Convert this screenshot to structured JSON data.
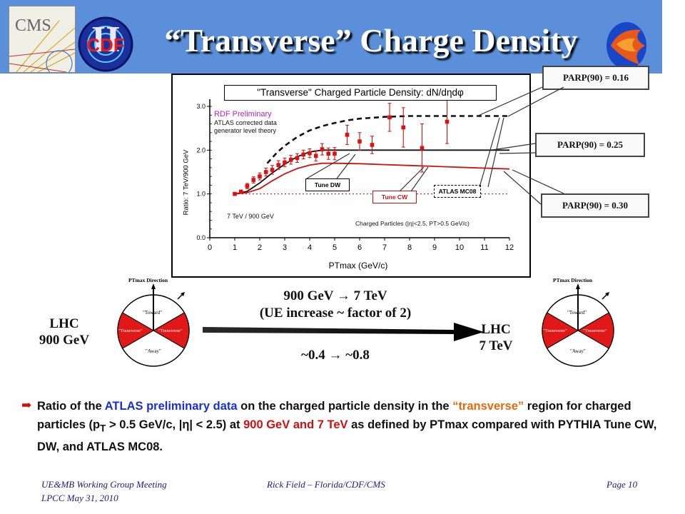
{
  "slide": {
    "title": "“Transverse” Charge Density"
  },
  "logos": {
    "cms": "CMS",
    "cdf": "CDF",
    "cdf_numeral": "II"
  },
  "plot": {
    "title_pre": "\"Transverse\" Charged Particle Density: dN/d",
    "title_greek": "ηdφ",
    "legend_preliminary": "RDF Preliminary",
    "legend_line2": "ATLAS corrected data",
    "legend_line3": "generator level theory",
    "energy_ratio_label": "7 TeV / 900 GeV",
    "charged_particles_label": "Charged Particles (|η|<2.5, PT>0.5 GeV/c)",
    "tune_dw": "Tune DW",
    "tune_cw": "Tune CW",
    "atlas_mc08": "ATLAS MC08",
    "ylabel": "Ratio: 7 TeV/900 GeV",
    "xlabel": "PTmax (GeV/c)"
  },
  "chart_data": {
    "type": "scatter",
    "title": "\"Transverse\" Charged Particle Density: dN/dηdφ",
    "xlabel": "PTmax (GeV/c)",
    "ylabel": "Ratio: 7 TeV/900 GeV",
    "xlim": [
      0,
      12
    ],
    "ylim": [
      0,
      3
    ],
    "x_ticks": [
      0,
      1,
      2,
      3,
      4,
      5,
      6,
      7,
      8,
      9,
      10,
      11,
      12
    ],
    "y_ticks": [
      0.0,
      1.0,
      2.0,
      3.0
    ],
    "data_points": [
      {
        "x": 1.0,
        "y": 1.0,
        "err": 0.03
      },
      {
        "x": 1.25,
        "y": 1.05,
        "err": 0.04
      },
      {
        "x": 1.5,
        "y": 1.18,
        "err": 0.06
      },
      {
        "x": 1.75,
        "y": 1.32,
        "err": 0.07
      },
      {
        "x": 2.0,
        "y": 1.4,
        "err": 0.08
      },
      {
        "x": 2.25,
        "y": 1.5,
        "err": 0.09
      },
      {
        "x": 2.5,
        "y": 1.55,
        "err": 0.1
      },
      {
        "x": 2.75,
        "y": 1.66,
        "err": 0.1
      },
      {
        "x": 3.0,
        "y": 1.72,
        "err": 0.1
      },
      {
        "x": 3.25,
        "y": 1.78,
        "err": 0.1
      },
      {
        "x": 3.5,
        "y": 1.82,
        "err": 0.1
      },
      {
        "x": 3.75,
        "y": 1.9,
        "err": 0.1
      },
      {
        "x": 4.0,
        "y": 1.93,
        "err": 0.1
      },
      {
        "x": 4.25,
        "y": 1.87,
        "err": 0.12
      },
      {
        "x": 4.5,
        "y": 2.02,
        "err": 0.13
      },
      {
        "x": 4.75,
        "y": 1.92,
        "err": 0.13
      },
      {
        "x": 5.0,
        "y": 1.92,
        "err": 0.14
      },
      {
        "x": 5.5,
        "y": 2.35,
        "err": 0.22
      },
      {
        "x": 6.0,
        "y": 2.2,
        "err": 0.2
      },
      {
        "x": 6.5,
        "y": 2.12,
        "err": 0.2
      },
      {
        "x": 7.2,
        "y": 2.75,
        "err": 0.32
      },
      {
        "x": 7.75,
        "y": 2.52,
        "err": 0.45
      },
      {
        "x": 8.5,
        "y": 2.05,
        "err": 0.55
      },
      {
        "x": 9.5,
        "y": 2.65,
        "err": 0.5
      }
    ],
    "series": [
      {
        "name": "Tune DW",
        "color": "#111111",
        "style": "solid",
        "x": [
          1,
          1.5,
          2,
          2.5,
          3,
          3.5,
          4,
          4.5,
          5,
          6,
          7,
          8,
          9,
          10,
          11,
          12
        ],
        "y": [
          1.0,
          1.06,
          1.25,
          1.48,
          1.68,
          1.85,
          1.96,
          2.0,
          2.0,
          2.0,
          2.0,
          2.0,
          2.0,
          2.0,
          2.0,
          2.0
        ]
      },
      {
        "name": "Tune CW",
        "color": "#d01010",
        "style": "solid",
        "x": [
          1,
          1.5,
          2,
          2.5,
          3,
          3.5,
          4,
          4.5,
          5,
          6,
          7,
          8,
          9,
          10,
          11,
          12
        ],
        "y": [
          1.0,
          1.03,
          1.12,
          1.3,
          1.46,
          1.58,
          1.66,
          1.7,
          1.7,
          1.69,
          1.67,
          1.65,
          1.63,
          1.61,
          1.59,
          1.57
        ]
      },
      {
        "name": "ATLAS MC08",
        "color": "#111111",
        "style": "dashed",
        "x": [
          2.3,
          2.7,
          3,
          3.5,
          4,
          4.5,
          5,
          5.5,
          6,
          7,
          8,
          9,
          10,
          11,
          12
        ],
        "y": [
          1.7,
          1.95,
          2.1,
          2.3,
          2.45,
          2.55,
          2.62,
          2.68,
          2.72,
          2.76,
          2.78,
          2.78,
          2.78,
          2.78,
          2.78
        ]
      }
    ],
    "reference_line": {
      "y": 1.0,
      "style": "dotted",
      "color": "#d01010"
    }
  },
  "parp": {
    "top": "PARP(90) = 0.16",
    "mid": "PARP(90) = 0.25",
    "bottom": "PARP(90) = 0.30"
  },
  "diagram": {
    "ptmax_direction": "PTmax Direction",
    "toward": "\"Toward\"",
    "transverse": "\"Transverse\"",
    "away": "\"Away\"",
    "lhc": "LHC",
    "lhc_900": "900 GeV",
    "lhc_7": "7 TeV",
    "energy_change": "900 GeV → 7 TeV",
    "ue_increase": "(UE increase ~ factor of 2)",
    "density_change": "~0.4 → ~0.8"
  },
  "description": {
    "p1": "Ratio of the ",
    "p2": "ATLAS preliminary data",
    "p3": " on the charged particle density in the ",
    "p4": "“transverse”",
    "p5": " region for charged particles (p",
    "p5_sub": "T",
    "p6": " > 0.5 GeV/c, |η| < 2.5) at ",
    "p7": "900 GeV and 7 TeV",
    "p8": " as defined by PTmax compared with PYTHIA Tune CW, DW, and ATLAS MC08."
  },
  "footer": {
    "meeting": "UE&MB Working Group Meeting",
    "venue": "LPCC  May 31, 2010",
    "author": "Rick Field – Florida/CDF/CMS",
    "page": "Page 10"
  }
}
